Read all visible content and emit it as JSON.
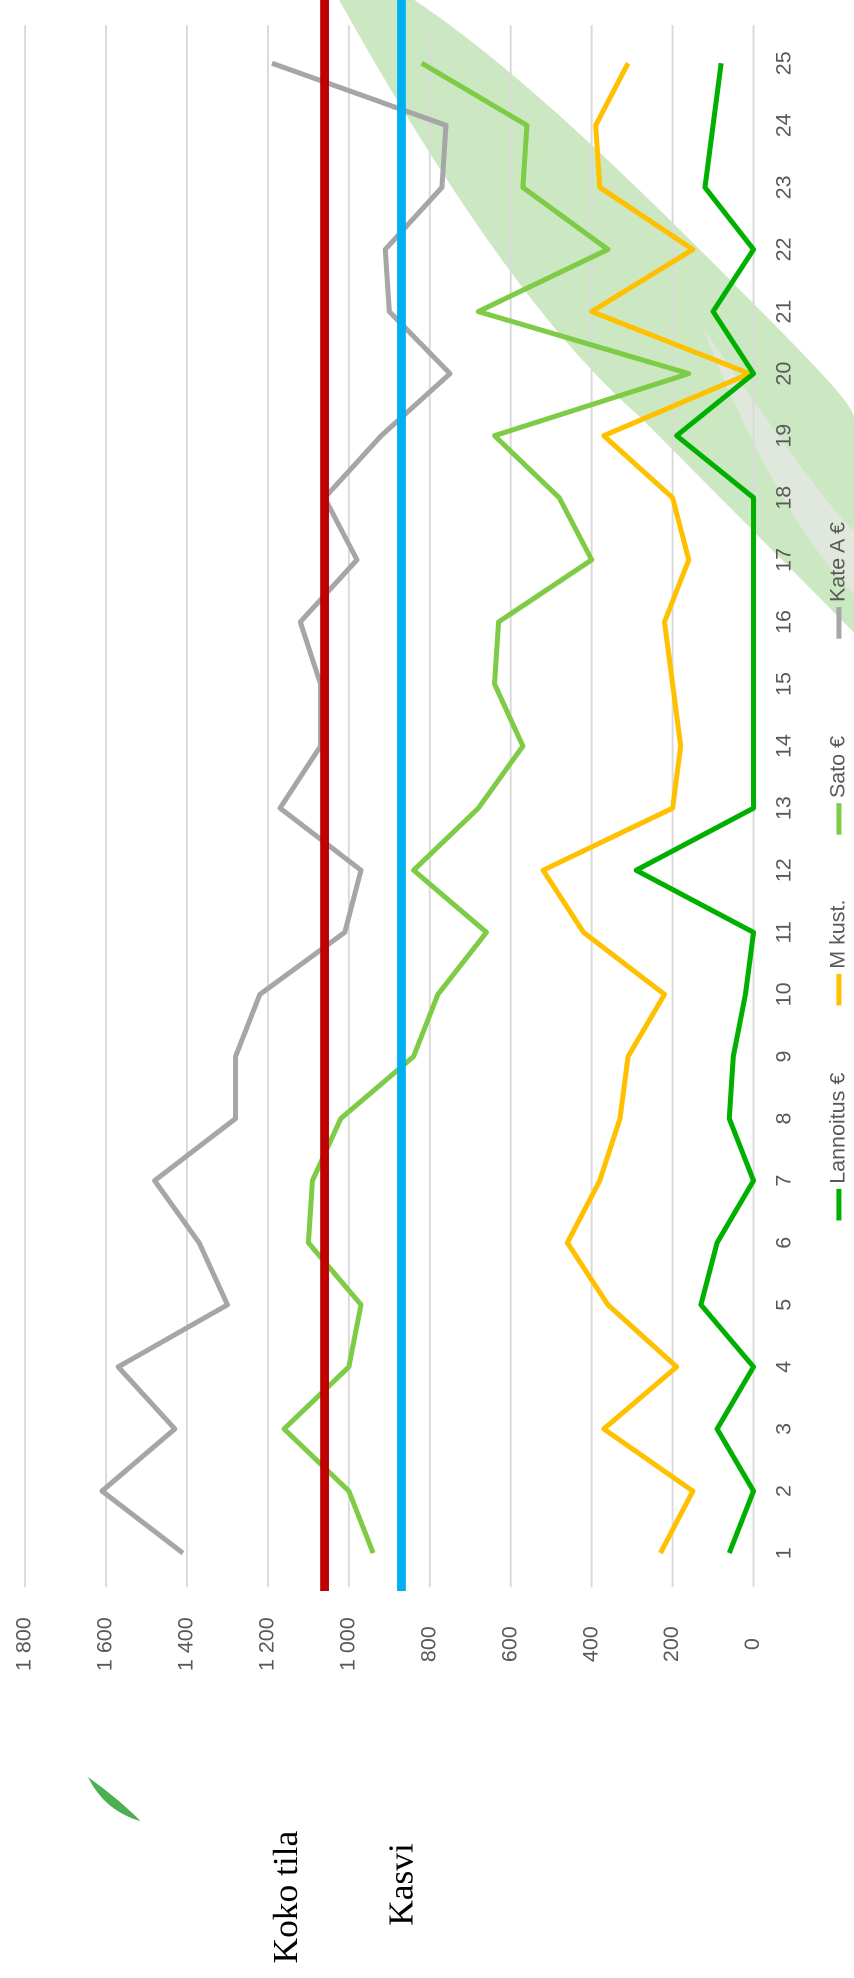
{
  "chart_data": {
    "type": "line",
    "categories": [
      "1",
      "2",
      "3",
      "4",
      "5",
      "6",
      "7",
      "8",
      "9",
      "10",
      "11",
      "12",
      "13",
      "14",
      "15",
      "16",
      "17",
      "18",
      "19",
      "20",
      "21",
      "22",
      "23",
      "24",
      "25"
    ],
    "series": [
      {
        "name": "Kate A €",
        "color": "#a6a6a6",
        "values": [
          1410,
          1610,
          1430,
          1570,
          1300,
          1370,
          1480,
          1280,
          1280,
          1220,
          1010,
          970,
          1170,
          1070,
          1070,
          1120,
          980,
          1060,
          920,
          750,
          900,
          910,
          770,
          760,
          1190
        ]
      },
      {
        "name": "Sato €",
        "color": "#7ecb45",
        "values": [
          940,
          1000,
          1160,
          1000,
          970,
          1100,
          1090,
          1020,
          840,
          780,
          660,
          840,
          680,
          570,
          640,
          630,
          400,
          480,
          640,
          160,
          680,
          360,
          570,
          560,
          820
        ]
      },
      {
        "name": "M kust.",
        "color": "#ffc000",
        "values": [
          230,
          150,
          370,
          190,
          360,
          460,
          380,
          330,
          310,
          220,
          420,
          520,
          200,
          180,
          200,
          220,
          160,
          200,
          370,
          10,
          400,
          150,
          380,
          390,
          310
        ]
      },
      {
        "name": "Lannoitus €",
        "color": "#00b000",
        "values": [
          60,
          0,
          90,
          0,
          130,
          90,
          0,
          60,
          50,
          20,
          0,
          290,
          0,
          0,
          0,
          0,
          0,
          0,
          190,
          0,
          100,
          0,
          120,
          100,
          80
        ]
      }
    ],
    "reference_lines": [
      {
        "label": "Koko tila",
        "value": 1060,
        "color": "#c00000"
      },
      {
        "label": "Kasvi",
        "value": 870,
        "color": "#00b0f0"
      }
    ],
    "ylim": [
      0,
      1800
    ],
    "yticks": [
      0,
      200,
      400,
      600,
      800,
      {
        "value": 1000,
        "label": "1 000"
      },
      {
        "value": 1200,
        "label": "1 200"
      },
      {
        "value": 1400,
        "label": "1 400"
      },
      {
        "value": 1600,
        "label": "1 600"
      },
      {
        "value": 1800,
        "label": "1 800"
      }
    ],
    "grid": true
  }
}
